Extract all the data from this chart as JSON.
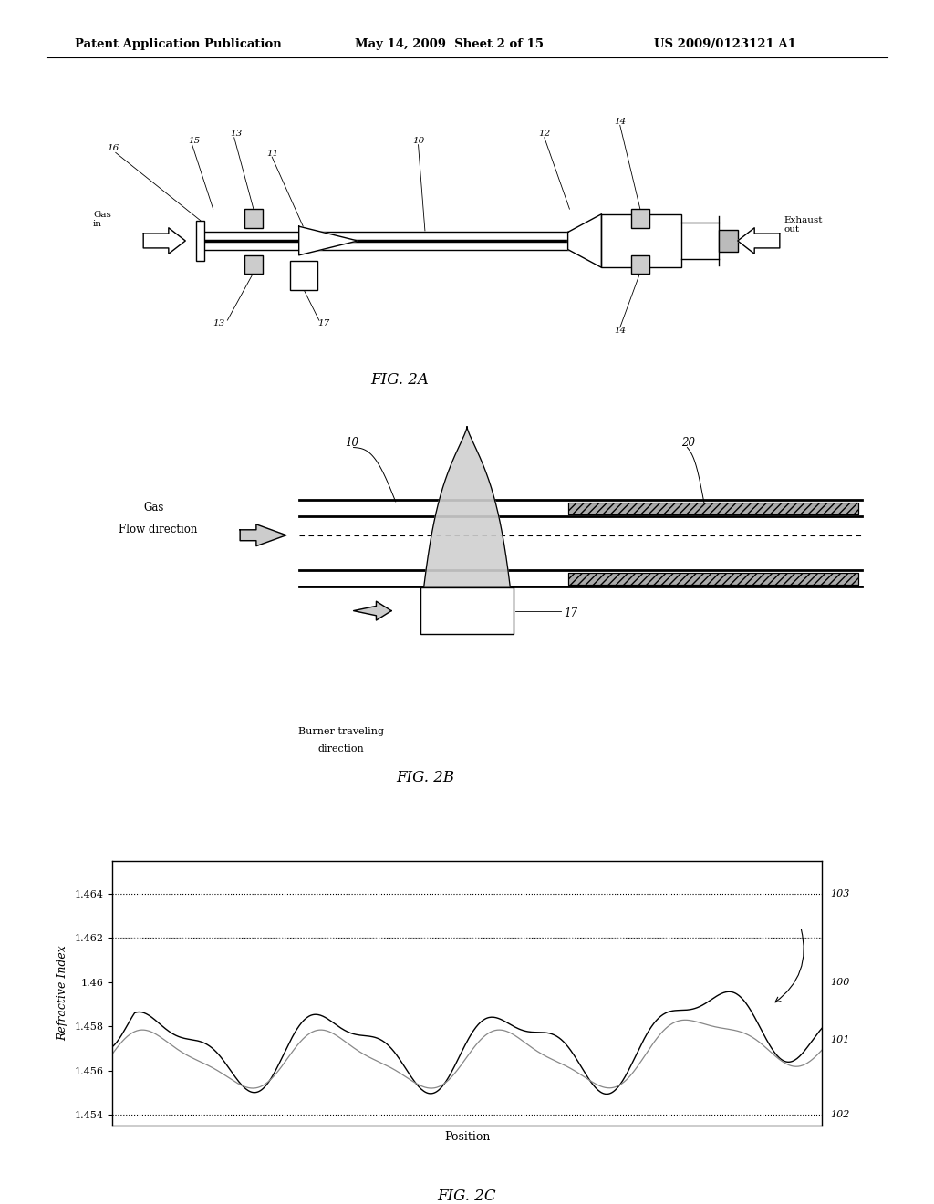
{
  "header_left": "Patent Application Publication",
  "header_mid": "May 14, 2009  Sheet 2 of 15",
  "header_right": "US 2009/0123121 A1",
  "fig2a_label": "FIG. 2A",
  "fig2b_label": "FIG. 2B",
  "fig2c_label": "FIG. 2C",
  "bg_color": "#ffffff",
  "line_color": "#000000",
  "yticks_2c": [
    1.454,
    1.456,
    1.458,
    1.46,
    1.462,
    1.464
  ],
  "ylabel_2c": "Refractive Index",
  "xlabel_2c": "Position"
}
